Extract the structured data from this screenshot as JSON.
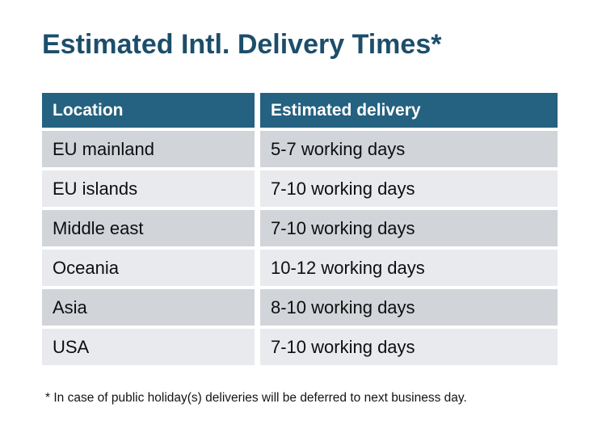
{
  "page": {
    "title": "Estimated Intl. Delivery Times*",
    "footnote": "* In case of public holiday(s) deliveries will be deferred to next business day."
  },
  "table": {
    "columns": [
      "Location",
      "Estimated delivery"
    ],
    "rows": [
      {
        "location": "EU mainland",
        "delivery": "5-7 working days"
      },
      {
        "location": "EU islands",
        "delivery": "7-10 working days"
      },
      {
        "location": "Middle east",
        "delivery": "7-10 working days"
      },
      {
        "location": "Oceania",
        "delivery": "10-12 working days"
      },
      {
        "location": "Asia",
        "delivery": "8-10 working days"
      },
      {
        "location": "USA",
        "delivery": "7-10 working days"
      }
    ]
  },
  "colors": {
    "title_color": "#1C4E6B",
    "header_bg": "#256180",
    "header_text": "#FFFFFF",
    "row_odd_bg": "#D1D4D9",
    "row_even_bg": "#E9EAED",
    "cell_text": "#0E0E0E",
    "page_bg": "#FFFFFF"
  }
}
